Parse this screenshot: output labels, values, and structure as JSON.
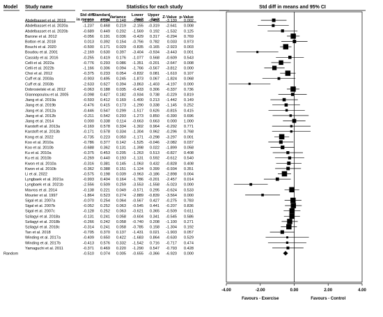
{
  "headers": {
    "model": "Model",
    "study_name": "Study name",
    "stats_group": "Statistics for each study",
    "plot_group": "Std diff in means and 95% CI",
    "columns": [
      {
        "id": "smd",
        "lines": [
          "Std diff",
          "in means"
        ]
      },
      {
        "id": "se",
        "lines": [
          "Standard",
          "error"
        ]
      },
      {
        "id": "var",
        "lines": [
          "Variance"
        ]
      },
      {
        "id": "lower",
        "lines": [
          "Lower",
          "limit"
        ]
      },
      {
        "id": "upper",
        "lines": [
          "Upper",
          "limit"
        ]
      },
      {
        "id": "z",
        "lines": [
          "Z-Value"
        ]
      },
      {
        "id": "p",
        "lines": [
          "p-Value"
        ]
      }
    ]
  },
  "axis": {
    "ticks": [
      "-4.00",
      "-2.00",
      "0.00",
      "2.00",
      "4.00"
    ],
    "label_left": "Favours - Exercise",
    "label_right": "Favours - Control"
  },
  "chart_data": {
    "type": "forest",
    "xlim": [
      -4,
      4
    ],
    "reference_line": 0,
    "studies": [
      {
        "name": "Abdelbasset et al. 2019",
        "smd": "-1.207",
        "se": "0.384",
        "var": "0.148",
        "lower": "-1.960",
        "upper": "-0.453",
        "z": "-3.139",
        "p": "0.002"
      },
      {
        "name": "Abdelbasset et al. 2020a",
        "smd": "-1.237",
        "se": "0.468",
        "var": "0.219",
        "lower": "-2.155",
        "upper": "-0.319",
        "z": "-2.641",
        "p": "0.008"
      },
      {
        "name": "Abdelbasset et al. 2020b",
        "smd": "-0.689",
        "se": "0.449",
        "var": "0.202",
        "lower": "-1.569",
        "upper": "0.192",
        "z": "-1.532",
        "p": "0.125"
      },
      {
        "name": "Barone et al. 2012",
        "smd": "-0.056",
        "se": "0.191",
        "var": "0.036",
        "lower": "-0.429",
        "upper": "0.317",
        "z": "-0.294",
        "p": "0.769"
      },
      {
        "name": "Botton et al. 2018",
        "smd": "0.013",
        "se": "0.392",
        "var": "0.154",
        "lower": "-0.756",
        "upper": "0.782",
        "z": "0.033",
        "p": "0.973"
      },
      {
        "name": "Bouchi et al. 2020",
        "smd": "-0.500",
        "se": "0.171",
        "var": "0.029",
        "lower": "-0.835",
        "upper": "-0.165",
        "z": "-2.923",
        "p": "0.003"
      },
      {
        "name": "Boudou et al. 2001",
        "smd": "-2.169",
        "se": "0.630",
        "var": "0.397",
        "lower": "-3.404",
        "upper": "-0.934",
        "z": "-3.443",
        "p": "0.001"
      },
      {
        "name": "Cassidy et al. 2016",
        "smd": "-0.255",
        "se": "0.419",
        "var": "0.176",
        "lower": "-1.077",
        "upper": "0.568",
        "z": "-0.609",
        "p": "0.543"
      },
      {
        "name": "Celli et al. 2022a",
        "smd": "-0.776",
        "se": "0.293",
        "var": "0.086",
        "lower": "-1.351",
        "upper": "-0.201",
        "z": "-2.647",
        "p": "0.008"
      },
      {
        "name": "Celli et al. 2022b",
        "smd": "-1.166",
        "se": "0.306",
        "var": "0.094",
        "lower": "-1.766",
        "upper": "-0.567",
        "z": "-3.812",
        "p": "0.000"
      },
      {
        "name": "Choi et al. 2012",
        "smd": "-0.375",
        "se": "0.233",
        "var": "0.054",
        "lower": "-0.832",
        "upper": "0.081",
        "z": "-1.610",
        "p": "0.107"
      },
      {
        "name": "Cuff et al. 2003a",
        "smd": "-0.903",
        "se": "0.495",
        "var": "0.245",
        "lower": "-1.873",
        "upper": "0.067",
        "z": "-1.824",
        "p": "0.068"
      },
      {
        "name": "Cuff et al. 2003b",
        "smd": "-2.633",
        "se": "0.627",
        "var": "0.394",
        "lower": "-3.863",
        "upper": "-1.403",
        "z": "-4.197",
        "p": "0.000"
      },
      {
        "name": "Dobrosielski et al. 2012",
        "smd": "-0.063",
        "se": "0.188",
        "var": "0.035",
        "lower": "-0.433",
        "upper": "0.306",
        "z": "-0.337",
        "p": "0.736"
      },
      {
        "name": "Giannopoulou et al. 2005",
        "smd": "-0.098",
        "se": "0.427",
        "var": "0.182",
        "lower": "-0.934",
        "upper": "0.738",
        "z": "-0.229",
        "p": "0.819"
      },
      {
        "name": "Jiang et al. 2019a",
        "smd": "-0.593",
        "se": "0.412",
        "var": "0.169",
        "lower": "-1.400",
        "upper": "0.213",
        "z": "-1.442",
        "p": "0.149"
      },
      {
        "name": "Jiang et al. 2019b",
        "smd": "-0.476",
        "se": "0.415",
        "var": "0.173",
        "lower": "-1.290",
        "upper": "0.338",
        "z": "-1.145",
        "p": "0.252"
      },
      {
        "name": "Jiang et al. 2012a",
        "smd": "-0.446",
        "se": "0.547",
        "var": "0.299",
        "lower": "-1.517",
        "upper": "0.626",
        "z": "-0.815",
        "p": "0.415"
      },
      {
        "name": "Jiang et al. 2012b",
        "smd": "-0.211",
        "se": "0.542",
        "var": "0.293",
        "lower": "-1.273",
        "upper": "0.850",
        "z": "-0.390",
        "p": "0.696"
      },
      {
        "name": "Jiang et al. 2014",
        "smd": "0.000",
        "se": "0.338",
        "var": "0.114",
        "lower": "-0.663",
        "upper": "0.663",
        "z": "0.000",
        "p": "1.000"
      },
      {
        "name": "Karstoft et al. 2013a",
        "smd": "-0.169",
        "se": "0.578",
        "var": "0.334",
        "lower": "-1.302",
        "upper": "0.964",
        "z": "-0.292",
        "p": "0.771"
      },
      {
        "name": "Karstoft et al. 2013b",
        "smd": "-0.171",
        "se": "0.578",
        "var": "0.334",
        "lower": "-1.304",
        "upper": "0.962",
        "z": "-0.296",
        "p": "0.768"
      },
      {
        "name": "Kong et al. 2022",
        "smd": "-0.735",
        "se": "0.223",
        "var": "0.050",
        "lower": "-1.171",
        "upper": "-0.298",
        "z": "-3.297",
        "p": "0.001"
      },
      {
        "name": "Koo et al. 2010a",
        "smd": "-0.786",
        "se": "0.377",
        "var": "0.142",
        "lower": "-1.525",
        "upper": "-0.046",
        "z": "-2.082",
        "p": "0.037"
      },
      {
        "name": "Koo et al. 2010b",
        "smd": "-0.688",
        "se": "0.362",
        "var": "0.131",
        "lower": "-1.398",
        "upper": "0.022",
        "z": "-1.899",
        "p": "0.058"
      },
      {
        "name": "Ku et al. 2010a",
        "smd": "-0.375",
        "se": "0.453",
        "var": "0.205",
        "lower": "-1.263",
        "upper": "0.513",
        "z": "-0.827",
        "p": "0.408"
      },
      {
        "name": "Ku et al. 2010b",
        "smd": "-0.269",
        "se": "0.440",
        "var": "0.193",
        "lower": "-1.131",
        "upper": "0.592",
        "z": "-0.612",
        "p": "0.540"
      },
      {
        "name": "Kwon et al. 2010a",
        "smd": "-0.316",
        "se": "0.381",
        "var": "0.145",
        "lower": "-1.063",
        "upper": "0.432",
        "z": "-0.828",
        "p": "0.408"
      },
      {
        "name": "Kwon et al. 2010b",
        "smd": "-0.362",
        "se": "0.388",
        "var": "0.151",
        "lower": "-1.124",
        "upper": "0.399",
        "z": "-0.934",
        "p": "0.351"
      },
      {
        "name": "Li et al. 2022",
        "smd": "-0.575",
        "se": "0.198",
        "var": "0.039",
        "lower": "-0.963",
        "upper": "-0.186",
        "z": "-2.898",
        "p": "0.004"
      },
      {
        "name": "Lyngbaek et al. 2021a",
        "smd": "-0.993",
        "se": "0.404",
        "var": "0.164",
        "lower": "-1.786",
        "upper": "-0.201",
        "z": "-2.457",
        "p": "0.014"
      },
      {
        "name": "Lyngbaek et al. 2021b",
        "smd": "-2.556",
        "se": "0.509",
        "var": "0.259",
        "lower": "-3.553",
        "upper": "-1.558",
        "z": "-5.023",
        "p": "0.000"
      },
      {
        "name": "Mavros et al. 2014",
        "smd": "-0.138",
        "se": "0.221",
        "var": "0.049",
        "lower": "-0.571",
        "upper": "0.295",
        "z": "-0.624",
        "p": "0.533"
      },
      {
        "name": "Mourier et al. 1997",
        "smd": "-1.864",
        "se": "0.523",
        "var": "0.274",
        "lower": "-2.889",
        "upper": "-0.839",
        "z": "-3.564",
        "p": "0.000"
      },
      {
        "name": "Sigal et al. 2007a",
        "smd": "-0.070",
        "se": "0.254",
        "var": "0.064",
        "lower": "-0.567",
        "upper": "0.427",
        "z": "-0.275",
        "p": "0.783"
      },
      {
        "name": "Sigal et al. 2007b",
        "smd": "-0.052",
        "se": "0.252",
        "var": "0.063",
        "lower": "-0.545",
        "upper": "0.441",
        "z": "-0.207",
        "p": "0.836"
      },
      {
        "name": "Sigal et al. 2007c",
        "smd": "-0.128",
        "se": "0.252",
        "var": "0.063",
        "lower": "-0.621",
        "upper": "0.365",
        "z": "-0.509",
        "p": "0.611"
      },
      {
        "name": "Szilagyi et al. 2018a",
        "smd": "-0.131",
        "se": "0.241",
        "var": "0.058",
        "lower": "-0.604",
        "upper": "0.341",
        "z": "-0.545",
        "p": "0.586"
      },
      {
        "name": "Szilagyi et al. 2018b",
        "smd": "-0.266",
        "se": "0.242",
        "var": "0.058",
        "lower": "-0.740",
        "upper": "0.208",
        "z": "-1.100",
        "p": "0.271"
      },
      {
        "name": "Szilagyi et al. 2018c",
        "smd": "-0.314",
        "se": "0.241",
        "var": "0.058",
        "lower": "-0.785",
        "upper": "0.158",
        "z": "-1.304",
        "p": "0.192"
      },
      {
        "name": "Tan et al. 2018",
        "smd": "-0.705",
        "se": "0.370",
        "var": "0.137",
        "lower": "-1.431",
        "upper": "0.021",
        "z": "-1.903",
        "p": "0.057"
      },
      {
        "name": "Winding et al. 2017a",
        "smd": "-0.409",
        "se": "0.650",
        "var": "0.422",
        "lower": "-1.683",
        "upper": "0.864",
        "z": "-0.630",
        "p": "0.529"
      },
      {
        "name": "Winding et al. 2017b",
        "smd": "-0.413",
        "se": "0.576",
        "var": "0.332",
        "lower": "-1.542",
        "upper": "0.716",
        "z": "-0.717",
        "p": "0.474"
      },
      {
        "name": "Yamaguchi et al. 2011",
        "smd": "-0.371",
        "se": "0.469",
        "var": "0.220",
        "lower": "-1.290",
        "upper": "0.547",
        "z": "-0.793",
        "p": "0.428"
      }
    ],
    "summary": {
      "model": "Random",
      "smd": "-0.510",
      "se": "0.074",
      "var": "0.005",
      "lower": "-0.655",
      "upper": "-0.366",
      "z": "-6.920",
      "p": "0.000"
    }
  }
}
